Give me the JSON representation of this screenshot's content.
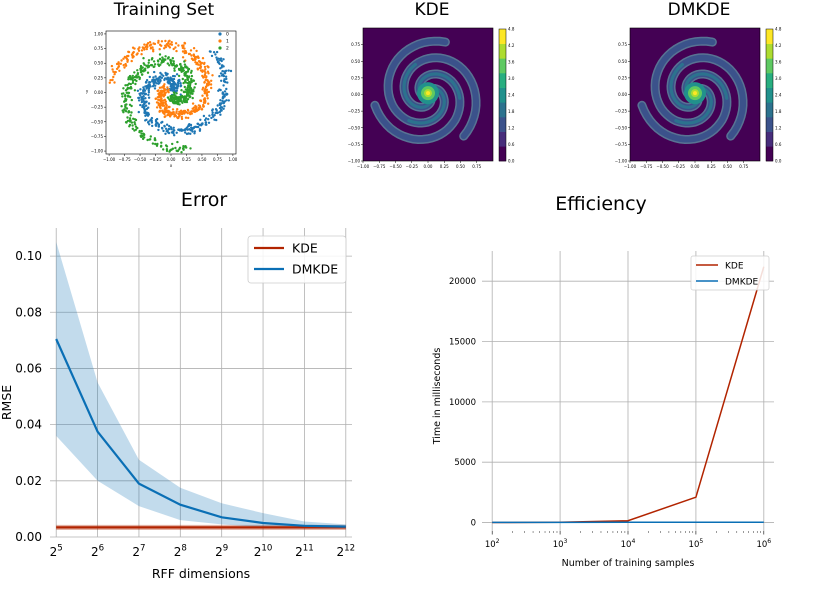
{
  "chart_data": [
    {
      "type": "scatter",
      "title": "Training Set",
      "xlabel": "x",
      "ylabel": "y",
      "xlim": [
        -1.05,
        1.05
      ],
      "ylim": [
        -1.05,
        1.05
      ],
      "x_ticks": [
        "−1.00",
        "−0.75",
        "−0.50",
        "−0.25",
        "0.00",
        "0.25",
        "0.50",
        "0.75",
        "1.00"
      ],
      "y_ticks": [
        "−1.00",
        "−0.75",
        "−0.50",
        "−0.25",
        "0.00",
        "0.25",
        "0.50",
        "0.75",
        "1.00"
      ],
      "legend_position": "top-right",
      "series": [
        {
          "name": "0",
          "color": "#1f77b4",
          "shape": "spiral arm, theta offset 0"
        },
        {
          "name": "1",
          "color": "#ff7f0e",
          "shape": "spiral arm, theta offset 2.09"
        },
        {
          "name": "2",
          "color": "#2ca02c",
          "shape": "spiral arm, theta offset 4.19"
        }
      ]
    },
    {
      "type": "heatmap",
      "title": "KDE",
      "xlim": [
        -1.0,
        1.0
      ],
      "ylim": [
        -1.0,
        1.0
      ],
      "x_ticks": [
        "−1.00",
        "−0.75",
        "−0.50",
        "−0.25",
        "0.00",
        "0.25",
        "0.50",
        "0.75"
      ],
      "y_ticks": [
        "−1.00",
        "−0.75",
        "−0.50",
        "−0.25",
        "0.00",
        "0.25",
        "0.50",
        "0.75"
      ],
      "colorbar_ticks": [
        "0.0",
        "0.6",
        "1.2",
        "1.8",
        "2.4",
        "3.0",
        "3.6",
        "4.2",
        "4.8"
      ],
      "colormap": "viridis"
    },
    {
      "type": "heatmap",
      "title": "DMKDE",
      "xlim": [
        -1.0,
        1.0
      ],
      "ylim": [
        -1.0,
        1.0
      ],
      "x_ticks": [
        "−1.00",
        "−0.75",
        "−0.50",
        "−0.25",
        "0.00",
        "0.25",
        "0.50",
        "0.75"
      ],
      "y_ticks": [
        "−1.00",
        "−0.75",
        "−0.50",
        "−0.25",
        "0.00",
        "0.25",
        "0.50",
        "0.75"
      ],
      "colorbar_ticks": [
        "0.0",
        "0.6",
        "1.2",
        "1.8",
        "2.4",
        "3.0",
        "3.6",
        "4.2",
        "4.8"
      ],
      "colormap": "viridis"
    },
    {
      "type": "line",
      "title": "Error",
      "xlabel": "RFF dimensions",
      "ylabel": "RMSE",
      "x": [
        5,
        6,
        7,
        8,
        9,
        10,
        11,
        12
      ],
      "x_tick_base": "2",
      "x_tick_exponents": [
        "5",
        "6",
        "7",
        "8",
        "9",
        "10",
        "11",
        "12"
      ],
      "ylim": [
        0,
        0.11
      ],
      "y_ticks": [
        "0.00",
        "0.02",
        "0.04",
        "0.06",
        "0.08",
        "0.10"
      ],
      "grid": true,
      "legend_position": "top-right",
      "series": [
        {
          "name": "KDE",
          "color": "#b22400",
          "values": [
            0.0034,
            0.0034,
            0.0034,
            0.0034,
            0.0034,
            0.0034,
            0.0034,
            0.0034
          ],
          "band_low": [
            0.0025,
            0.0025,
            0.0025,
            0.0025,
            0.0025,
            0.0025,
            0.0025,
            0.0025
          ],
          "band_high": [
            0.0043,
            0.0043,
            0.0043,
            0.0043,
            0.0043,
            0.0043,
            0.0043,
            0.0043
          ]
        },
        {
          "name": "DMKDE",
          "color": "#0a6fb5",
          "values": [
            0.0705,
            0.0375,
            0.019,
            0.0115,
            0.007,
            0.005,
            0.004,
            0.0037
          ],
          "band_low": [
            0.036,
            0.02,
            0.011,
            0.006,
            0.0045,
            0.0035,
            0.003,
            0.003
          ],
          "band_high": [
            0.105,
            0.055,
            0.0275,
            0.0175,
            0.012,
            0.0085,
            0.0055,
            0.0045
          ]
        }
      ]
    },
    {
      "type": "line",
      "title": "Efficiency",
      "xlabel": "Number of training samples",
      "ylabel": "Time in milliseconds",
      "x": [
        100,
        1000,
        10000,
        100000,
        1000000
      ],
      "x_scale": "log",
      "x_tick_base": "10",
      "x_tick_exponents": [
        "2",
        "3",
        "4",
        "5",
        "6"
      ],
      "ylim": [
        -700,
        22500
      ],
      "y_ticks": [
        0,
        5000,
        10000,
        15000,
        20000
      ],
      "y_tick_labels": [
        "0",
        "5000",
        "10000",
        "15000",
        "20000"
      ],
      "grid": true,
      "legend_position": "top-right",
      "series": [
        {
          "name": "KDE",
          "color": "#b22400",
          "values": [
            3,
            20,
            150,
            2100,
            21200
          ]
        },
        {
          "name": "DMKDE",
          "color": "#0a6fb5",
          "values": [
            10,
            15,
            20,
            25,
            30
          ]
        }
      ]
    }
  ]
}
